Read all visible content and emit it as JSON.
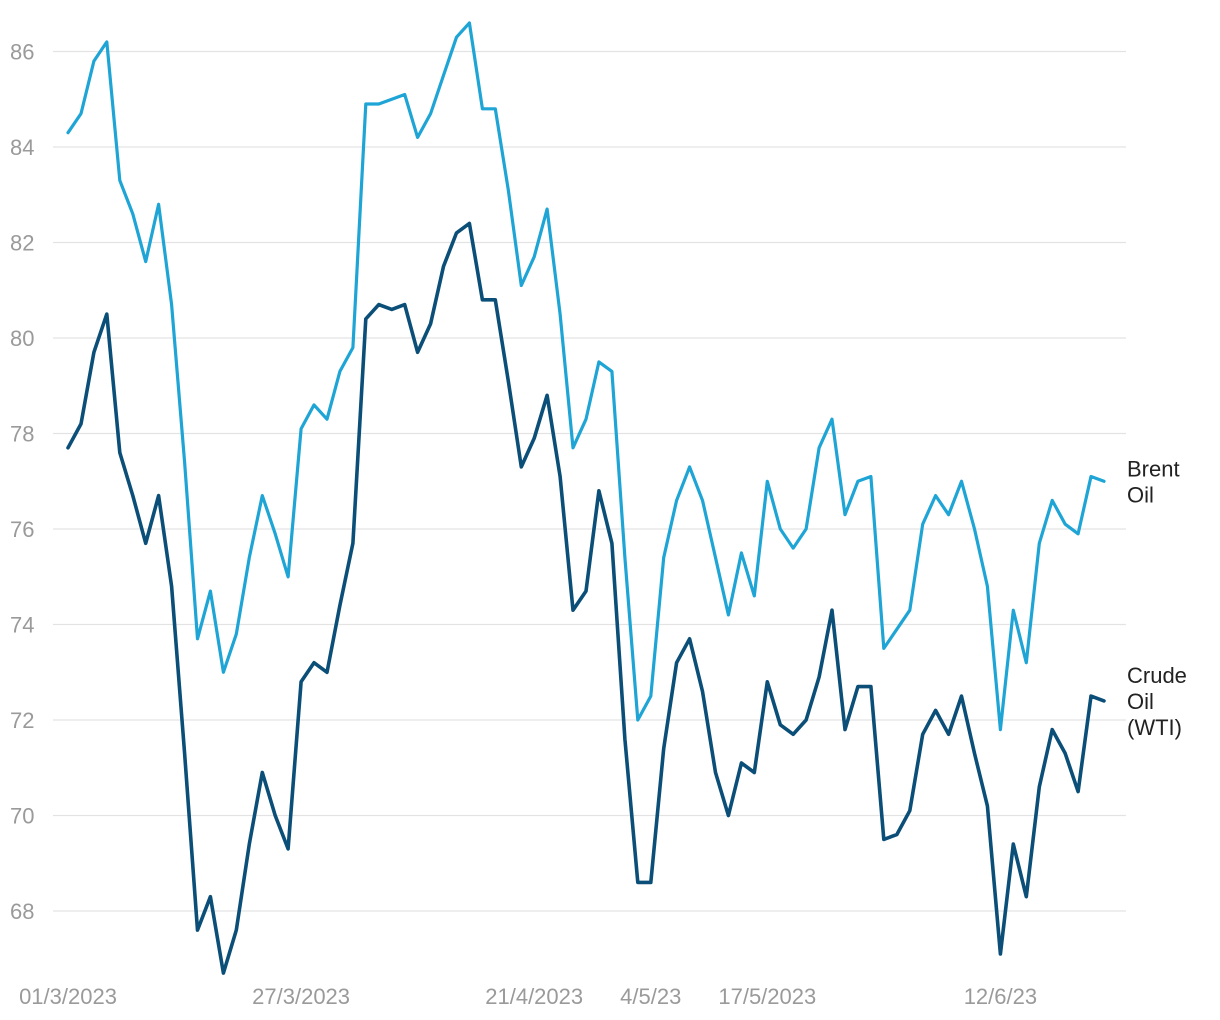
{
  "chart_data": {
    "type": "line",
    "title": "",
    "xlabel": "",
    "ylabel": "",
    "ylim": [
      66.8,
      86.8
    ],
    "yticks": [
      68,
      70,
      72,
      74,
      76,
      78,
      80,
      82,
      84,
      86
    ],
    "x_tick_labels": [
      {
        "label": "01/3/2023",
        "index": 0
      },
      {
        "label": "27/3/2023",
        "index": 18
      },
      {
        "label": "21/4/2023",
        "index": 36
      },
      {
        "label": "4/5/23",
        "index": 45
      },
      {
        "label": "17/5/2023",
        "index": 54
      },
      {
        "label": "12/6/23",
        "index": 72
      }
    ],
    "grid": true,
    "series": [
      {
        "name": "Brent Oil",
        "label_lines": [
          "Brent",
          "Oil"
        ],
        "color": "#1ea5d6",
        "values": [
          84.3,
          84.7,
          85.8,
          86.2,
          83.3,
          82.6,
          81.6,
          82.8,
          80.7,
          77.4,
          73.7,
          74.7,
          73.0,
          73.8,
          75.4,
          76.7,
          75.9,
          75.0,
          78.1,
          78.6,
          78.3,
          79.3,
          79.8,
          84.9,
          84.9,
          85.0,
          85.1,
          84.2,
          84.7,
          85.5,
          86.3,
          86.6,
          84.8,
          84.8,
          83.1,
          81.1,
          81.7,
          82.7,
          80.5,
          77.7,
          78.3,
          79.5,
          79.3,
          75.4,
          72.0,
          72.5,
          75.4,
          76.6,
          77.3,
          76.6,
          75.4,
          74.2,
          75.5,
          74.6,
          77.0,
          76.0,
          75.6,
          76.0,
          77.7,
          78.3,
          76.3,
          77.0,
          77.1,
          73.5,
          73.9,
          74.3,
          76.1,
          76.7,
          76.3,
          77.0,
          76.0,
          74.8,
          71.8,
          74.3,
          73.2,
          75.7,
          76.6,
          76.1,
          75.9,
          77.1,
          77.0
        ]
      },
      {
        "name": "Crude Oil (WTI)",
        "label_lines": [
          "Crude",
          "Oil",
          "(WTI)"
        ],
        "color": "#0b4f78",
        "values": [
          77.7,
          78.2,
          79.7,
          80.5,
          77.6,
          76.7,
          75.7,
          76.7,
          74.8,
          71.3,
          67.6,
          68.3,
          66.7,
          67.6,
          69.4,
          70.9,
          70.0,
          69.3,
          72.8,
          73.2,
          73.0,
          74.4,
          75.7,
          80.4,
          80.7,
          80.6,
          80.7,
          79.7,
          80.3,
          81.5,
          82.2,
          82.4,
          80.8,
          80.8,
          79.1,
          77.3,
          77.9,
          78.8,
          77.1,
          74.3,
          74.7,
          76.8,
          75.7,
          71.6,
          68.6,
          68.6,
          71.4,
          73.2,
          73.7,
          72.6,
          70.9,
          70.0,
          71.1,
          70.9,
          72.8,
          71.9,
          71.7,
          72.0,
          72.9,
          74.3,
          71.8,
          72.7,
          72.7,
          69.5,
          69.6,
          70.1,
          71.7,
          72.2,
          71.7,
          72.5,
          71.3,
          70.2,
          67.1,
          69.4,
          68.3,
          70.6,
          71.8,
          71.3,
          70.5,
          72.5,
          72.4
        ]
      }
    ]
  }
}
